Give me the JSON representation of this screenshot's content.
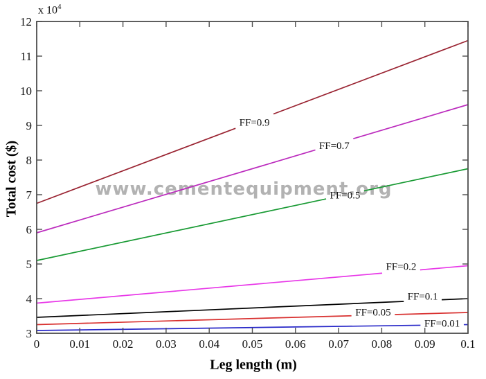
{
  "watermark": "www.cementequipment.org",
  "chart": {
    "y_exponent_base": "x 10",
    "y_exponent_power": "4"
  },
  "colors": {
    "axis": "#4d4d4d",
    "tick_text": "#111111",
    "watermark": "#b2b2b2",
    "background": "#ffffff"
  },
  "chart_data": {
    "type": "line",
    "title": "",
    "xlabel": "Leg length (m)",
    "ylabel": "Total cost ($)",
    "y_units": "x 10^4 $",
    "x_range": [
      0,
      0.1
    ],
    "y_range": [
      3,
      12
    ],
    "grid": false,
    "legend_position": "inline-labels-on-lines",
    "x_tick_labels": [
      "0",
      "0.01",
      "0.02",
      "0.03",
      "0.04",
      "0.05",
      "0.06",
      "0.07",
      "0.08",
      "0.09",
      "0.1"
    ],
    "y_tick_labels": [
      "3",
      "4",
      "5",
      "6",
      "7",
      "8",
      "9",
      "10",
      "11",
      "12"
    ],
    "x": [
      0,
      0.1
    ],
    "series": [
      {
        "label": "FF=0.9",
        "color": "#9a2432",
        "y": [
          6.75,
          11.45
        ],
        "label_x": 0.0505,
        "label_dy": 3
      },
      {
        "label": "FF=0.7",
        "color": "#bb2abd",
        "y": [
          5.9,
          9.6
        ],
        "label_x": 0.069,
        "label_dy": 3
      },
      {
        "label": "FF=0.5",
        "color": "#189a33",
        "y": [
          5.1,
          7.75
        ],
        "label_x": 0.0715,
        "label_dy": 2
      },
      {
        "label": "FF=0.2",
        "color": "#e838e8",
        "y": [
          3.87,
          4.95
        ],
        "label_x": 0.0845,
        "label_dy": -6
      },
      {
        "label": "FF=0.1",
        "color": "#000000",
        "y": [
          3.46,
          4.0
        ],
        "label_x": 0.0895,
        "label_dy": -5
      },
      {
        "label": "FF=0.05",
        "color": "#d8302f",
        "y": [
          3.25,
          3.6
        ],
        "label_x": 0.078,
        "label_dy": -3
      },
      {
        "label": "FF=0.01",
        "color": "#2828c8",
        "y": [
          3.08,
          3.25
        ],
        "label_x": 0.094,
        "label_dy": -1
      }
    ]
  }
}
